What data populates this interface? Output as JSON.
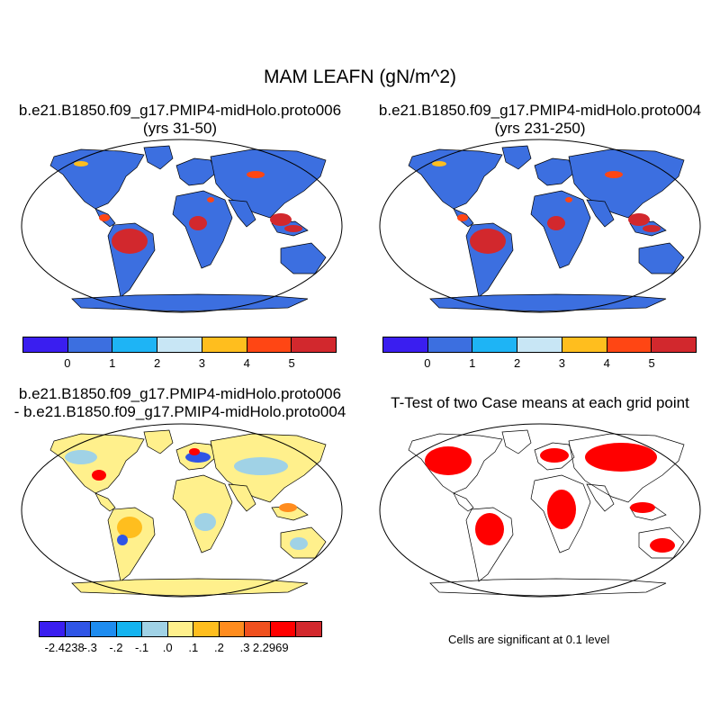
{
  "title": "MAM LEAFN (gN/m^2)",
  "panels": [
    {
      "id": "p1",
      "title_lines": [
        "b.e21.B1850.f09_g17.PMIP4-midHolo.proto006",
        "(yrs 31-50)"
      ]
    },
    {
      "id": "p2",
      "title_lines": [
        "b.e21.B1850.f09_g17.PMIP4-midHolo.proto004",
        "(yrs 231-250)"
      ]
    },
    {
      "id": "p3",
      "title_lines": [
        "b.e21.B1850.f09_g17.PMIP4-midHolo.proto006",
        "- b.e21.B1850.f09_g17.PMIP4-midHolo.proto004"
      ]
    },
    {
      "id": "p4",
      "title_lines": [
        "T-Test of two Case means at each grid point"
      ]
    }
  ],
  "colorbar_main": {
    "colors": [
      "#3a1ef0",
      "#3c6fe0",
      "#1eb4f5",
      "#c8e6f5",
      "#ffbe1e",
      "#ff4614",
      "#d2282d"
    ],
    "labels": [
      "0",
      "1",
      "2",
      "3",
      "4",
      "5"
    ]
  },
  "colorbar_diff": {
    "colors": [
      "#3a1ef0",
      "#2f55e6",
      "#1e8cf0",
      "#14b4f0",
      "#a0d2e6",
      "#fff08c",
      "#ffbe1e",
      "#ff8c1e",
      "#f0501e",
      "#ff0000",
      "#d2282d"
    ],
    "labels": [
      "-2.4238",
      "-.3",
      "-.2",
      "-.1",
      ".0",
      ".1",
      ".2",
      ".3",
      "2.2969"
    ]
  },
  "significance_note": "Cells are significant at 0.1 level",
  "colors": {
    "ocean": "#ffffff",
    "land_main": "#3c6fe0",
    "land_diff": "#fff08c",
    "significant": "#ff0000",
    "outline": "#000000"
  }
}
